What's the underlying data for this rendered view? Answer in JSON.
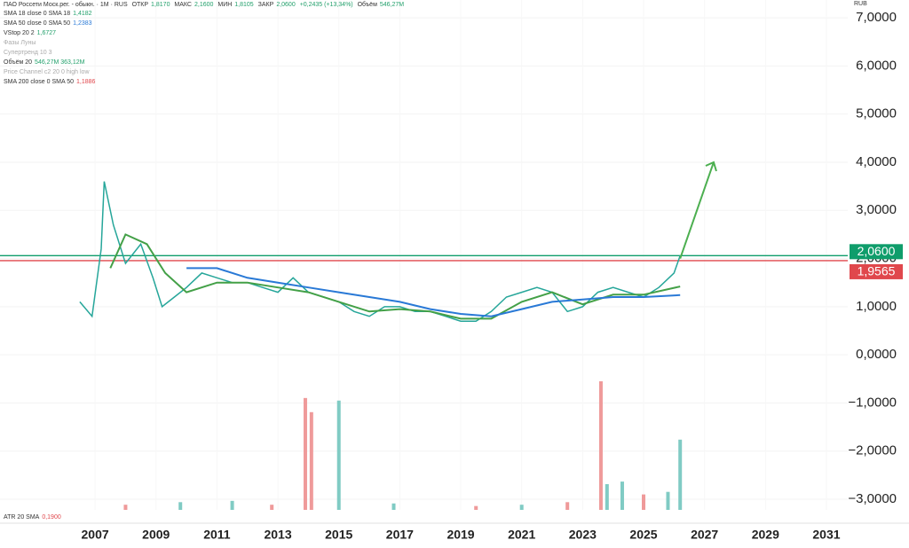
{
  "chart_data": {
    "type": "line",
    "header": {
      "symbol": "ПАО Россети Моск.рег. - обыкн. · 1М · RUS",
      "open_label": "ОТКР",
      "open": "1,8170",
      "high_label": "МАКС",
      "high": "2,1600",
      "low_label": "МИН",
      "low": "1,8105",
      "close_label": "ЗАКР",
      "close": "2,0600",
      "change": "+0,2435 (+13,34%)",
      "volume_label": "Объём",
      "volume": "546,27M"
    },
    "indicators": [
      {
        "name": "SMA 18 close 0 SMA 18",
        "value": "1,4182",
        "color": "#22a06b"
      },
      {
        "name": "SMA 50 close 0 SMA 50",
        "value": "1,2383",
        "color": "#2979d6"
      },
      {
        "name": "VStop 20 2",
        "value": "1,6727",
        "color": "#22a06b"
      },
      {
        "name": "Фазы Луны",
        "value": "",
        "color": "#aaa"
      },
      {
        "name": "Супертренд 10 3",
        "value": "",
        "color": "#aaa"
      },
      {
        "name": "Объём 20",
        "value": "546,27M 363,12M",
        "color": "#22a06b"
      },
      {
        "name": "Price Channel c2 20 0 high low",
        "value": "",
        "color": "#aaa"
      },
      {
        "name": "SMA 200 close 0 SMA 50",
        "value": "1,1886",
        "color": "#e0474c"
      }
    ],
    "atr": {
      "name": "ATR 20 SMA",
      "value": "0,1900"
    },
    "currency": "RUB",
    "xlim": [
      2003.88,
      2031.7
    ],
    "xticks": [
      2007,
      2009,
      2011,
      2013,
      2015,
      2017,
      2019,
      2021,
      2023,
      2025,
      2027,
      2029,
      2031
    ],
    "ylim": [
      -3.22,
      7.37
    ],
    "yticks": [
      {
        "value": 7,
        "label": "7,0000"
      },
      {
        "value": 6,
        "label": "6,0000"
      },
      {
        "value": 5,
        "label": "5,0000"
      },
      {
        "value": 4,
        "label": "4,0000"
      },
      {
        "value": 3,
        "label": "3,0000"
      },
      {
        "value": 2,
        "label": "2,0000"
      },
      {
        "value": 1,
        "label": "1,0000"
      },
      {
        "value": 0,
        "label": "0,0000"
      },
      {
        "value": -1,
        "label": "−1,0000"
      },
      {
        "value": -2,
        "label": "−2,0000"
      },
      {
        "value": -3,
        "label": "−3,0000"
      }
    ],
    "series": [
      {
        "color": "#26a69a",
        "x": [
          2006.5,
          2006.9,
          2007.2,
          2007.3,
          2007.6,
          2008.0,
          2008.5,
          2008.9,
          2009.2,
          2009.6,
          2010.0,
          2010.5,
          2011.0,
          2011.5,
          2012.0,
          2012.5,
          2013.0,
          2013.5,
          2014.0,
          2014.5,
          2015.0,
          2015.5,
          2016.0,
          2016.5,
          2017.0,
          2017.5,
          2018.0,
          2018.5,
          2019.0,
          2019.5,
          2020.0,
          2020.5,
          2021.0,
          2021.5,
          2022.0,
          2022.5,
          2023.0,
          2023.5,
          2024.0,
          2024.5,
          2025.0,
          2025.5,
          2026.0,
          2026.2
        ],
        "values": [
          1.1,
          0.8,
          2.2,
          3.6,
          2.7,
          1.9,
          2.3,
          1.6,
          1.0,
          1.2,
          1.4,
          1.7,
          1.6,
          1.5,
          1.5,
          1.4,
          1.3,
          1.6,
          1.3,
          1.2,
          1.1,
          0.9,
          0.8,
          1.0,
          1.0,
          0.9,
          0.9,
          0.8,
          0.7,
          0.7,
          0.9,
          1.2,
          1.3,
          1.4,
          1.3,
          0.9,
          1.0,
          1.3,
          1.4,
          1.3,
          1.2,
          1.4,
          1.7,
          2.06
        ]
      },
      {
        "name": "SMA 18",
        "color": "#43a047",
        "x": [
          2007.5,
          2008.0,
          2008.7,
          2009.3,
          2010,
          2011,
          2012,
          2013,
          2014,
          2015,
          2016,
          2017,
          2018,
          2019,
          2020,
          2021,
          2022,
          2023,
          2024,
          2025,
          2026.2
        ],
        "values": [
          1.8,
          2.5,
          2.3,
          1.7,
          1.3,
          1.5,
          1.5,
          1.4,
          1.3,
          1.1,
          0.9,
          0.95,
          0.9,
          0.75,
          0.75,
          1.1,
          1.3,
          1.05,
          1.25,
          1.25,
          1.42
        ]
      },
      {
        "name": "SMA 50",
        "color": "#2979d6",
        "x": [
          2010,
          2011,
          2012,
          2013,
          2014,
          2015,
          2016,
          2017,
          2018,
          2019,
          2020,
          2021,
          2022,
          2023,
          2024,
          2025,
          2026.2
        ],
        "values": [
          1.8,
          1.8,
          1.6,
          1.5,
          1.4,
          1.3,
          1.2,
          1.1,
          0.95,
          0.85,
          0.8,
          0.95,
          1.1,
          1.15,
          1.2,
          1.2,
          1.24
        ]
      }
    ],
    "price_lines": [
      {
        "value": 2.06,
        "label": "2,0600",
        "color": "#0f9d6b"
      },
      {
        "value": 1.9565,
        "label": "1,9565",
        "color": "#e0474c"
      }
    ],
    "arrow": {
      "x": [
        2026.2,
        2027.3
      ],
      "values": [
        2.0,
        4.0
      ],
      "color": "#4caf50"
    },
    "volume": {
      "ylim": [
        0,
        1000
      ],
      "x": [
        2008.0,
        2009.8,
        2011.5,
        2012.8,
        2013.9,
        2014.1,
        2015.0,
        2016.8,
        2019.5,
        2021.0,
        2022.5,
        2023.6,
        2023.8,
        2024.3,
        2025.0,
        2025.8,
        2026.2
      ],
      "values": [
        40,
        60,
        70,
        40,
        870,
        760,
        850,
        50,
        30,
        40,
        60,
        1000,
        200,
        220,
        120,
        140,
        546.27
      ],
      "colors": [
        "#ef9a9a",
        "#80cbc4",
        "#80cbc4",
        "#ef9a9a",
        "#ef9a9a",
        "#ef9a9a",
        "#80cbc4",
        "#80cbc4",
        "#ef9a9a",
        "#80cbc4",
        "#ef9a9a",
        "#ef9a9a",
        "#80cbc4",
        "#80cbc4",
        "#ef9a9a",
        "#80cbc4",
        "#80cbc4"
      ]
    }
  }
}
